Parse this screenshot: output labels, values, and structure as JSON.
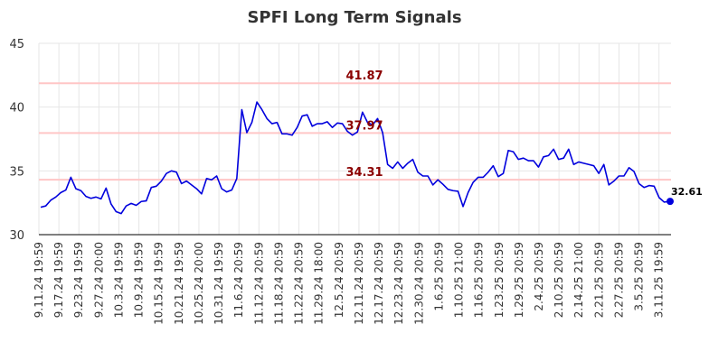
{
  "chart_data": {
    "type": "line",
    "title": "SPFI Long Term Signals",
    "xlabel": "",
    "ylabel": "",
    "ylim": [
      30,
      45
    ],
    "yticks": [
      30,
      35,
      40,
      45
    ],
    "grid": true,
    "x_tick_labels": [
      "9.11.24 19:59",
      "9.17.24 19:59",
      "9.23.24 19:59",
      "9.27.24 20:00",
      "10.3.24 19:59",
      "10.9.24 19:59",
      "10.15.24 19:59",
      "10.21.24 19:59",
      "10.25.24 20:00",
      "10.31.24 19:59",
      "11.6.24 20:59",
      "11.12.24 20:59",
      "11.18.24 20:59",
      "11.22.24 20:59",
      "11.29.24 18:00",
      "12.5.24 20:59",
      "12.11.24 20:59",
      "12.17.24 20:59",
      "12.23.24 20:59",
      "12.30.24 20:59",
      "1.6.25 20:59",
      "1.10.25 21:00",
      "1.16.25 20:59",
      "1.23.25 20:59",
      "1.29.25 20:59",
      "2.4.25 20:59",
      "2.10.25 20:59",
      "2.14.25 21:00",
      "2.21.25 20:59",
      "2.27.25 20:59",
      "3.5.25 20:59",
      "3.11.25 19:59"
    ],
    "series": [
      {
        "color": "#0000dd",
        "values": [
          32.15,
          32.25,
          32.7,
          32.95,
          33.3,
          33.5,
          34.5,
          33.6,
          33.45,
          33.0,
          32.85,
          32.95,
          32.8,
          33.65,
          32.4,
          31.8,
          31.65,
          32.25,
          32.45,
          32.3,
          32.6,
          32.65,
          33.7,
          33.8,
          34.2,
          34.8,
          35.0,
          34.9,
          34.0,
          34.2,
          33.9,
          33.6,
          33.2,
          34.4,
          34.3,
          34.6,
          33.6,
          33.35,
          33.5,
          34.4,
          39.8,
          38.0,
          38.8,
          40.4,
          39.8,
          39.1,
          38.7,
          38.8,
          37.9,
          37.9,
          37.8,
          38.4,
          39.3,
          39.4,
          38.5,
          38.7,
          38.7,
          38.85,
          38.4,
          38.75,
          38.7,
          38.1,
          37.8,
          38.05,
          39.6,
          38.8,
          38.6,
          39.1,
          38.0,
          35.5,
          35.2,
          35.7,
          35.2,
          35.6,
          35.9,
          34.9,
          34.6,
          34.6,
          33.9,
          34.3,
          33.95,
          33.55,
          33.45,
          33.4,
          32.2,
          33.3,
          34.1,
          34.5,
          34.5,
          34.9,
          35.4,
          34.55,
          34.8,
          36.6,
          36.5,
          35.9,
          36.0,
          35.8,
          35.8,
          35.3,
          36.1,
          36.2,
          36.7,
          35.9,
          36.0,
          36.7,
          35.5,
          35.7,
          35.6,
          35.5,
          35.4,
          34.8,
          35.5,
          33.9,
          34.2,
          34.6,
          34.6,
          35.25,
          34.95,
          34.0,
          33.7,
          33.85,
          33.8,
          32.9,
          32.55,
          32.61
        ]
      }
    ],
    "signals": [
      {
        "value": 41.87,
        "label": "41.87",
        "color": "#8b0000",
        "line_color": "#ffc6c6"
      },
      {
        "value": 37.97,
        "label": "37.97",
        "color": "#8b0000",
        "line_color": "#ffc6c6"
      },
      {
        "value": 34.31,
        "label": "34.31",
        "color": "#8b0000",
        "line_color": "#ffc6c6"
      }
    ],
    "last_value": {
      "value": 32.61,
      "label": "32.61"
    }
  }
}
